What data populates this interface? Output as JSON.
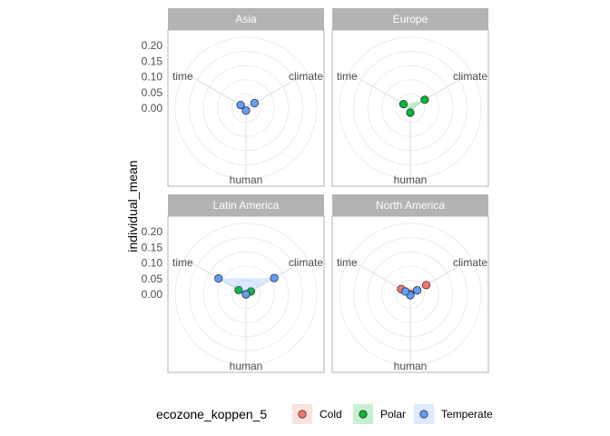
{
  "chart_data": {
    "type": "radar",
    "ylabel": "individual_mean",
    "axes": [
      "climate",
      "human",
      "time"
    ],
    "yticks": [
      "0.00",
      "0.05",
      "0.10",
      "0.15",
      "0.20"
    ],
    "ylim": [
      0,
      0.25
    ],
    "grid": true,
    "legend": {
      "title": "ecozone_koppen_5",
      "position": "bottom",
      "entries": [
        {
          "name": "Cold",
          "color": "#F8766D"
        },
        {
          "name": "Polar",
          "color": "#00BA38"
        },
        {
          "name": "Temperate",
          "color": "#619CFF"
        }
      ]
    },
    "panels": [
      {
        "title": "Asia",
        "series": [
          {
            "name": "Temperate",
            "values": {
              "climate": 0.035,
              "human": 0.009,
              "time": 0.022
            }
          }
        ]
      },
      {
        "title": "Europe",
        "series": [
          {
            "name": "Polar",
            "values": {
              "climate": 0.059,
              "human": 0.016,
              "time": 0.028
            }
          }
        ]
      },
      {
        "title": "Latin America",
        "series": [
          {
            "name": "Polar",
            "values": {
              "climate": 0.02,
              "human": 0.0,
              "time": 0.03
            }
          },
          {
            "name": "Temperate",
            "values": {
              "climate": 0.115,
              "human": 0.0,
              "time": 0.112
            }
          }
        ]
      },
      {
        "title": "North America",
        "series": [
          {
            "name": "Cold",
            "values": {
              "climate": 0.065,
              "human": 0.0,
              "time": 0.037
            }
          },
          {
            "name": "Polar",
            "values": {
              "climate": 0.0,
              "human": 0.0,
              "time": 0.0
            }
          },
          {
            "name": "Temperate",
            "values": {
              "climate": 0.028,
              "human": 0.003,
              "time": 0.02
            }
          }
        ]
      }
    ]
  }
}
